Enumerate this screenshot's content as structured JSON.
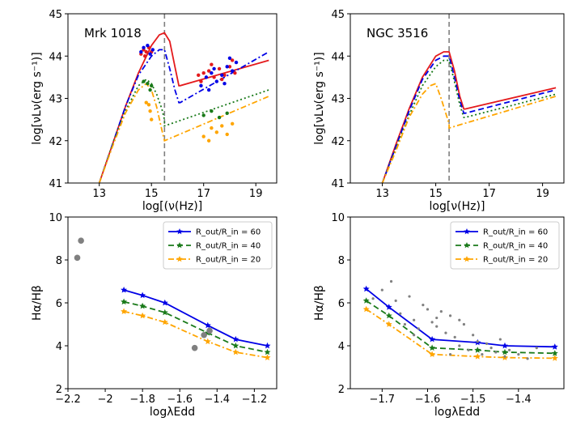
{
  "figure": {
    "panels": {
      "a": {
        "annotation": "Mrk 1018",
        "xlabel": "log[(ν(Hz)]",
        "ylabel": "log[νLν(erg s⁻¹)]"
      },
      "b": {
        "annotation": "NGC 3516",
        "xlabel": "log[ν(Hz)]",
        "ylabel": "log[νLν(erg s⁻¹)]"
      },
      "c": {
        "xlabel": "logλEdd",
        "ylabel": "Hα/Hβ"
      },
      "d": {
        "xlabel": "logλEdd",
        "ylabel": "Hα/Hβ"
      }
    },
    "legend": [
      "R_out/R_in = 60",
      "R_out/R_in = 40",
      "R_out/R_in = 20"
    ]
  },
  "colors": {
    "red": "#e41a1c",
    "blue": "#0000e6",
    "green": "#1a7a1a",
    "orange": "#ffa500",
    "grey": "#808080",
    "dashline": "#808080"
  },
  "chart_data": [
    {
      "type": "line",
      "title": "Mrk 1018",
      "xlabel": "log[(ν(Hz)]",
      "ylabel": "log[νLν(erg s⁻¹)]",
      "xlim": [
        11.8,
        19.8
      ],
      "ylim": [
        41,
        45
      ],
      "xticks": [
        13,
        15,
        17,
        19
      ],
      "yticks": [
        41,
        42,
        43,
        44,
        45
      ],
      "vline_x": 15.5,
      "series": [
        {
          "name": "red model",
          "color": "red",
          "dash": "solid",
          "x": [
            13,
            13.5,
            14,
            14.5,
            15,
            15.3,
            15.5,
            15.7,
            15.9,
            16.05,
            16.1,
            19.5
          ],
          "y": [
            41,
            41.9,
            42.8,
            43.6,
            44.25,
            44.5,
            44.55,
            44.35,
            43.75,
            43.3,
            43.3,
            43.9
          ]
        },
        {
          "name": "blue model",
          "color": "blue",
          "dash": "dashdot",
          "x": [
            13,
            13.5,
            14,
            14.5,
            15,
            15.3,
            15.5,
            15.7,
            15.9,
            16.05,
            16.1,
            19.5
          ],
          "y": [
            41,
            41.9,
            42.8,
            43.55,
            44.0,
            44.15,
            44.15,
            43.7,
            43.2,
            42.9,
            42.9,
            44.1
          ]
        },
        {
          "name": "green model",
          "color": "green",
          "dash": "dotted",
          "x": [
            13,
            13.5,
            14,
            14.5,
            14.8,
            15.0,
            15.2,
            15.4,
            15.5,
            15.5,
            19.5
          ],
          "y": [
            41,
            41.9,
            42.7,
            43.3,
            43.45,
            43.35,
            43.1,
            42.75,
            42.5,
            42.35,
            43.2
          ]
        },
        {
          "name": "orange model",
          "color": "orange",
          "dash": "dashdot",
          "x": [
            13,
            13.5,
            14,
            14.5,
            14.8,
            15.0,
            15.2,
            15.4,
            15.5,
            15.5,
            19.5
          ],
          "y": [
            41,
            41.85,
            42.65,
            43.2,
            43.35,
            43.2,
            42.8,
            42.25,
            42.0,
            42.0,
            43.05
          ]
        }
      ],
      "points": {
        "red": [
          [
            14.6,
            44.05
          ],
          [
            14.7,
            44.15
          ],
          [
            14.8,
            44.1
          ],
          [
            14.9,
            44.2
          ],
          [
            15.0,
            44.1
          ],
          [
            14.75,
            44.0
          ],
          [
            16.8,
            43.55
          ],
          [
            17.0,
            43.6
          ],
          [
            17.2,
            43.65
          ],
          [
            17.4,
            43.5
          ],
          [
            17.6,
            43.7
          ],
          [
            17.8,
            43.55
          ],
          [
            18.0,
            43.75
          ],
          [
            18.2,
            43.6
          ],
          [
            17.3,
            43.8
          ],
          [
            17.7,
            43.45
          ],
          [
            16.9,
            43.4
          ],
          [
            18.1,
            43.9
          ]
        ],
        "blue": [
          [
            14.6,
            44.1
          ],
          [
            14.7,
            44.2
          ],
          [
            14.85,
            44.25
          ],
          [
            14.95,
            44.05
          ],
          [
            15.05,
            44.15
          ],
          [
            16.9,
            43.3
          ],
          [
            17.1,
            43.5
          ],
          [
            17.3,
            43.6
          ],
          [
            17.5,
            43.4
          ],
          [
            17.7,
            43.55
          ],
          [
            17.9,
            43.75
          ],
          [
            18.1,
            43.65
          ],
          [
            18.25,
            43.85
          ],
          [
            17.4,
            43.7
          ],
          [
            17.8,
            43.35
          ],
          [
            18.0,
            43.95
          ],
          [
            17.2,
            43.2
          ]
        ],
        "green": [
          [
            14.7,
            43.4
          ],
          [
            14.85,
            43.35
          ],
          [
            15.0,
            43.3
          ],
          [
            14.95,
            43.2
          ],
          [
            17.0,
            42.6
          ],
          [
            17.3,
            42.7
          ],
          [
            17.6,
            42.55
          ],
          [
            17.9,
            42.65
          ]
        ],
        "orange": [
          [
            14.8,
            42.9
          ],
          [
            14.95,
            42.7
          ],
          [
            15.0,
            42.5
          ],
          [
            14.9,
            42.85
          ],
          [
            17.0,
            42.1
          ],
          [
            17.3,
            42.3
          ],
          [
            17.5,
            42.2
          ],
          [
            17.7,
            42.35
          ],
          [
            17.9,
            42.15
          ],
          [
            18.1,
            42.4
          ],
          [
            17.2,
            42.0
          ]
        ]
      }
    },
    {
      "type": "line",
      "title": "NGC 3516",
      "xlabel": "log[ν(Hz)]",
      "ylabel": "log[νLν(erg s⁻¹)]",
      "xlim": [
        11.8,
        19.8
      ],
      "ylim": [
        41,
        45
      ],
      "xticks": [
        13,
        15,
        17,
        19
      ],
      "yticks": [
        41,
        42,
        43,
        44,
        45
      ],
      "vline_x": 15.5,
      "series": [
        {
          "name": "red model",
          "color": "red",
          "dash": "solid",
          "x": [
            13,
            13.5,
            14,
            14.5,
            15,
            15.3,
            15.5,
            15.7,
            15.9,
            16.05,
            16.1,
            19.5
          ],
          "y": [
            41,
            41.9,
            42.75,
            43.5,
            44.0,
            44.1,
            44.1,
            43.65,
            43.05,
            42.75,
            42.75,
            43.25
          ]
        },
        {
          "name": "blue model",
          "color": "blue",
          "dash": "dashed",
          "x": [
            13,
            13.5,
            14,
            14.5,
            15,
            15.3,
            15.5,
            15.7,
            15.9,
            16.05,
            16.1,
            19.5
          ],
          "y": [
            41,
            41.85,
            42.7,
            43.45,
            43.9,
            44.0,
            44.0,
            43.5,
            42.95,
            42.65,
            42.65,
            43.2
          ]
        },
        {
          "name": "green model",
          "color": "green",
          "dash": "dotted",
          "x": [
            13,
            13.5,
            14,
            14.5,
            15,
            15.3,
            15.5,
            15.7,
            15.9,
            16.05,
            16.1,
            19.5
          ],
          "y": [
            41,
            41.8,
            42.6,
            43.3,
            43.75,
            43.9,
            43.9,
            43.4,
            42.85,
            42.55,
            42.55,
            43.1
          ]
        },
        {
          "name": "orange model",
          "color": "orange",
          "dash": "dashdot",
          "x": [
            13,
            13.5,
            14,
            14.5,
            14.8,
            15.0,
            15.2,
            15.4,
            15.5,
            15.5,
            19.5
          ],
          "y": [
            41,
            41.75,
            42.55,
            43.1,
            43.3,
            43.35,
            43.0,
            42.6,
            42.4,
            42.3,
            43.05
          ]
        }
      ],
      "points": {}
    },
    {
      "type": "line",
      "xlabel": "logλEdd",
      "ylabel": "Hα/Hβ",
      "xlim": [
        -2.2,
        -1.08
      ],
      "ylim": [
        2,
        10
      ],
      "xticks": [
        -2.2,
        -2.0,
        -1.8,
        -1.6,
        -1.4,
        -1.2
      ],
      "yticks": [
        2,
        4,
        6,
        8,
        10
      ],
      "series": [
        {
          "name": "R_out/R_in = 60",
          "color": "blue",
          "dash": "solid",
          "x": [
            -1.9,
            -1.8,
            -1.68,
            -1.45,
            -1.3,
            -1.13
          ],
          "y": [
            6.6,
            6.35,
            6.0,
            4.95,
            4.3,
            4.0
          ]
        },
        {
          "name": "R_out/R_in = 40",
          "color": "green",
          "dash": "dashed",
          "x": [
            -1.9,
            -1.8,
            -1.68,
            -1.45,
            -1.3,
            -1.13
          ],
          "y": [
            6.05,
            5.85,
            5.55,
            4.6,
            4.0,
            3.7
          ]
        },
        {
          "name": "R_out/R_in = 20",
          "color": "orange",
          "dash": "dashdot",
          "x": [
            -1.9,
            -1.8,
            -1.68,
            -1.45,
            -1.3,
            -1.13
          ],
          "y": [
            5.6,
            5.4,
            5.1,
            4.2,
            3.7,
            3.45
          ]
        }
      ],
      "points": {
        "grey": [
          [
            -2.13,
            8.9
          ],
          [
            -2.15,
            8.1
          ],
          [
            -1.52,
            3.9
          ],
          [
            -1.47,
            4.5
          ],
          [
            -1.44,
            4.7
          ]
        ]
      }
    },
    {
      "type": "line",
      "xlabel": "logλEdd",
      "ylabel": "Hα/Hβ",
      "xlim": [
        -1.77,
        -1.3
      ],
      "ylim": [
        2,
        10
      ],
      "xticks": [
        -1.7,
        -1.6,
        -1.5,
        -1.4
      ],
      "yticks": [
        2,
        4,
        6,
        8,
        10
      ],
      "series": [
        {
          "name": "R_out/R_in = 60",
          "color": "blue",
          "dash": "solid",
          "x": [
            -1.735,
            -1.685,
            -1.59,
            -1.49,
            -1.43,
            -1.32
          ],
          "y": [
            6.65,
            5.8,
            4.3,
            4.15,
            4.0,
            3.95
          ]
        },
        {
          "name": "R_out/R_in = 40",
          "color": "green",
          "dash": "dashed",
          "x": [
            -1.735,
            -1.685,
            -1.59,
            -1.49,
            -1.43,
            -1.32
          ],
          "y": [
            6.1,
            5.4,
            3.9,
            3.8,
            3.7,
            3.65
          ]
        },
        {
          "name": "R_out/R_in = 20",
          "color": "orange",
          "dash": "dashdot",
          "x": [
            -1.735,
            -1.685,
            -1.59,
            -1.49,
            -1.43,
            -1.32
          ],
          "y": [
            5.7,
            5.0,
            3.6,
            3.5,
            3.45,
            3.42
          ]
        }
      ],
      "points": {
        "grey": [
          [
            -1.72,
            6.2
          ],
          [
            -1.7,
            6.6
          ],
          [
            -1.68,
            7.0
          ],
          [
            -1.66,
            5.5
          ],
          [
            -1.65,
            5.0
          ],
          [
            -1.64,
            6.3
          ],
          [
            -1.63,
            5.2
          ],
          [
            -1.62,
            4.8
          ],
          [
            -1.61,
            5.9
          ],
          [
            -1.6,
            5.7
          ],
          [
            -1.59,
            5.1
          ],
          [
            -1.58,
            4.9
          ],
          [
            -1.57,
            5.6
          ],
          [
            -1.56,
            4.6
          ],
          [
            -1.55,
            5.4
          ],
          [
            -1.54,
            4.4
          ],
          [
            -1.53,
            4.0
          ],
          [
            -1.52,
            5.0
          ],
          [
            -1.51,
            3.8
          ],
          [
            -1.5,
            4.5
          ],
          [
            -1.49,
            4.2
          ],
          [
            -1.48,
            3.6
          ],
          [
            -1.47,
            4.1
          ],
          [
            -1.46,
            3.9
          ],
          [
            -1.45,
            3.7
          ],
          [
            -1.44,
            4.3
          ],
          [
            -1.43,
            3.5
          ],
          [
            -1.42,
            3.8
          ],
          [
            -1.4,
            3.6
          ],
          [
            -1.38,
            3.4
          ],
          [
            -1.36,
            3.9
          ],
          [
            -1.55,
            3.6
          ],
          [
            -1.58,
            5.3
          ],
          [
            -1.63,
            4.5
          ],
          [
            -1.67,
            6.1
          ],
          [
            -1.53,
            5.2
          ]
        ]
      }
    }
  ]
}
